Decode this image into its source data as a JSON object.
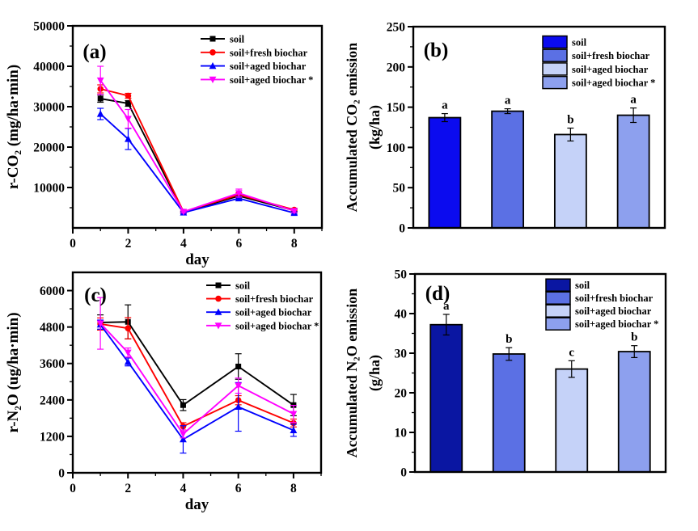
{
  "figure": {
    "background": "#ffffff"
  },
  "chart_data": [
    {
      "id": "a",
      "type": "line",
      "panel_label": "(a)",
      "xlabel": "day",
      "ylabel": "r-CO₂ (mg/ha·min)",
      "xlim": [
        0,
        9
      ],
      "ylim": [
        0,
        50000
      ],
      "xticks": [
        0,
        2,
        4,
        6,
        8
      ],
      "yticks": [
        10000,
        20000,
        30000,
        40000,
        50000
      ],
      "x_minor_step": 1,
      "y_minor_step": 5000,
      "grid": false,
      "legend_position": "top-right",
      "x": [
        1,
        2,
        4,
        6,
        8
      ],
      "series": [
        {
          "name": "soil",
          "color": "#000000",
          "marker": "square",
          "values": [
            32000,
            30800,
            3900,
            7900,
            4300
          ],
          "errors": [
            900,
            700,
            200,
            400,
            300
          ]
        },
        {
          "name": "soil+fresh biochar",
          "color": "#fe0000",
          "marker": "circle",
          "values": [
            34400,
            32700,
            4000,
            8200,
            4500
          ],
          "errors": [
            1000,
            600,
            200,
            500,
            300
          ]
        },
        {
          "name": "soil+aged biochar",
          "color": "#0000fe",
          "marker": "triangle-up",
          "values": [
            28200,
            22000,
            3800,
            7300,
            3700
          ],
          "errors": [
            1400,
            2600,
            200,
            500,
            300
          ]
        },
        {
          "name": "soil+aged biochar *",
          "color": "#ff00ff",
          "marker": "triangle-down",
          "values": [
            36500,
            27000,
            4000,
            8600,
            4200
          ],
          "errors": [
            3500,
            2300,
            250,
            1000,
            400
          ]
        }
      ]
    },
    {
      "id": "b",
      "type": "bar",
      "panel_label": "(b)",
      "ylabel_lines": [
        "Accumulated CO₂ emission",
        "(kg/ha)"
      ],
      "ylim": [
        0,
        250
      ],
      "yticks": [
        0,
        50,
        100,
        150,
        200,
        250
      ],
      "y_minor_step": 25,
      "grid": false,
      "legend_position": "top-right",
      "bars": [
        {
          "name": "soil",
          "color": "#0b0bef",
          "value": 137,
          "error": 5,
          "letter": "a"
        },
        {
          "name": "soil+fresh biochar",
          "color": "#5b70e4",
          "value": 145,
          "error": 3,
          "letter": "a"
        },
        {
          "name": "soil+aged biochar",
          "color": "#c5d2f8",
          "value": 116,
          "error": 8,
          "letter": "b"
        },
        {
          "name": "soil+aged biochar *",
          "color": "#8da0ee",
          "value": 140,
          "error": 9,
          "letter": "a"
        }
      ]
    },
    {
      "id": "c",
      "type": "line",
      "panel_label": "(c)",
      "xlabel": "day",
      "ylabel": "r-N₂O (ug/ha·min)",
      "xlim": [
        0,
        9
      ],
      "ylim": [
        0,
        6600
      ],
      "xticks": [
        0,
        2,
        4,
        6,
        8
      ],
      "yticks": [
        0,
        1200,
        2400,
        3600,
        4800,
        6000
      ],
      "x_minor_step": 1,
      "y_minor_step": 600,
      "grid": false,
      "legend_position": "top-right",
      "x": [
        1,
        2,
        4,
        6,
        8
      ],
      "series": [
        {
          "name": "soil",
          "color": "#000000",
          "marker": "square",
          "values": [
            4950,
            4970,
            2230,
            3500,
            2230
          ],
          "errors": [
            250,
            560,
            180,
            420,
            350
          ]
        },
        {
          "name": "soil+fresh biochar",
          "color": "#fe0000",
          "marker": "circle",
          "values": [
            4900,
            4760,
            1530,
            2390,
            1640
          ],
          "errors": [
            200,
            350,
            120,
            150,
            130
          ]
        },
        {
          "name": "soil+aged biochar",
          "color": "#0000fe",
          "marker": "triangle-up",
          "values": [
            4880,
            3650,
            1100,
            2170,
            1400
          ],
          "errors": [
            150,
            130,
            450,
            800,
            200
          ]
        },
        {
          "name": "soil+aged biochar *",
          "color": "#ff00ff",
          "marker": "triangle-down",
          "values": [
            4920,
            3960,
            1280,
            2870,
            1940
          ],
          "errors": [
            850,
            150,
            130,
            250,
            280
          ]
        }
      ]
    },
    {
      "id": "d",
      "type": "bar",
      "panel_label": "(d)",
      "ylabel_lines": [
        "Accumulated N₂O emission",
        "(g/ha)"
      ],
      "ylim": [
        0,
        50
      ],
      "yticks": [
        0,
        10,
        20,
        30,
        40,
        50
      ],
      "y_minor_step": 5,
      "grid": false,
      "legend_position": "top-right",
      "bars": [
        {
          "name": "soil",
          "color": "#0a16a2",
          "value": 37.2,
          "error": 2.6,
          "letter": "a"
        },
        {
          "name": "soil+fresh biochar",
          "color": "#5b70e4",
          "value": 29.8,
          "error": 1.6,
          "letter": "b"
        },
        {
          "name": "soil+aged biochar",
          "color": "#c5d2f8",
          "value": 26.0,
          "error": 2.1,
          "letter": "c"
        },
        {
          "name": "soil+aged biochar *",
          "color": "#8da0ee",
          "value": 30.4,
          "error": 1.5,
          "letter": "b"
        }
      ]
    }
  ]
}
